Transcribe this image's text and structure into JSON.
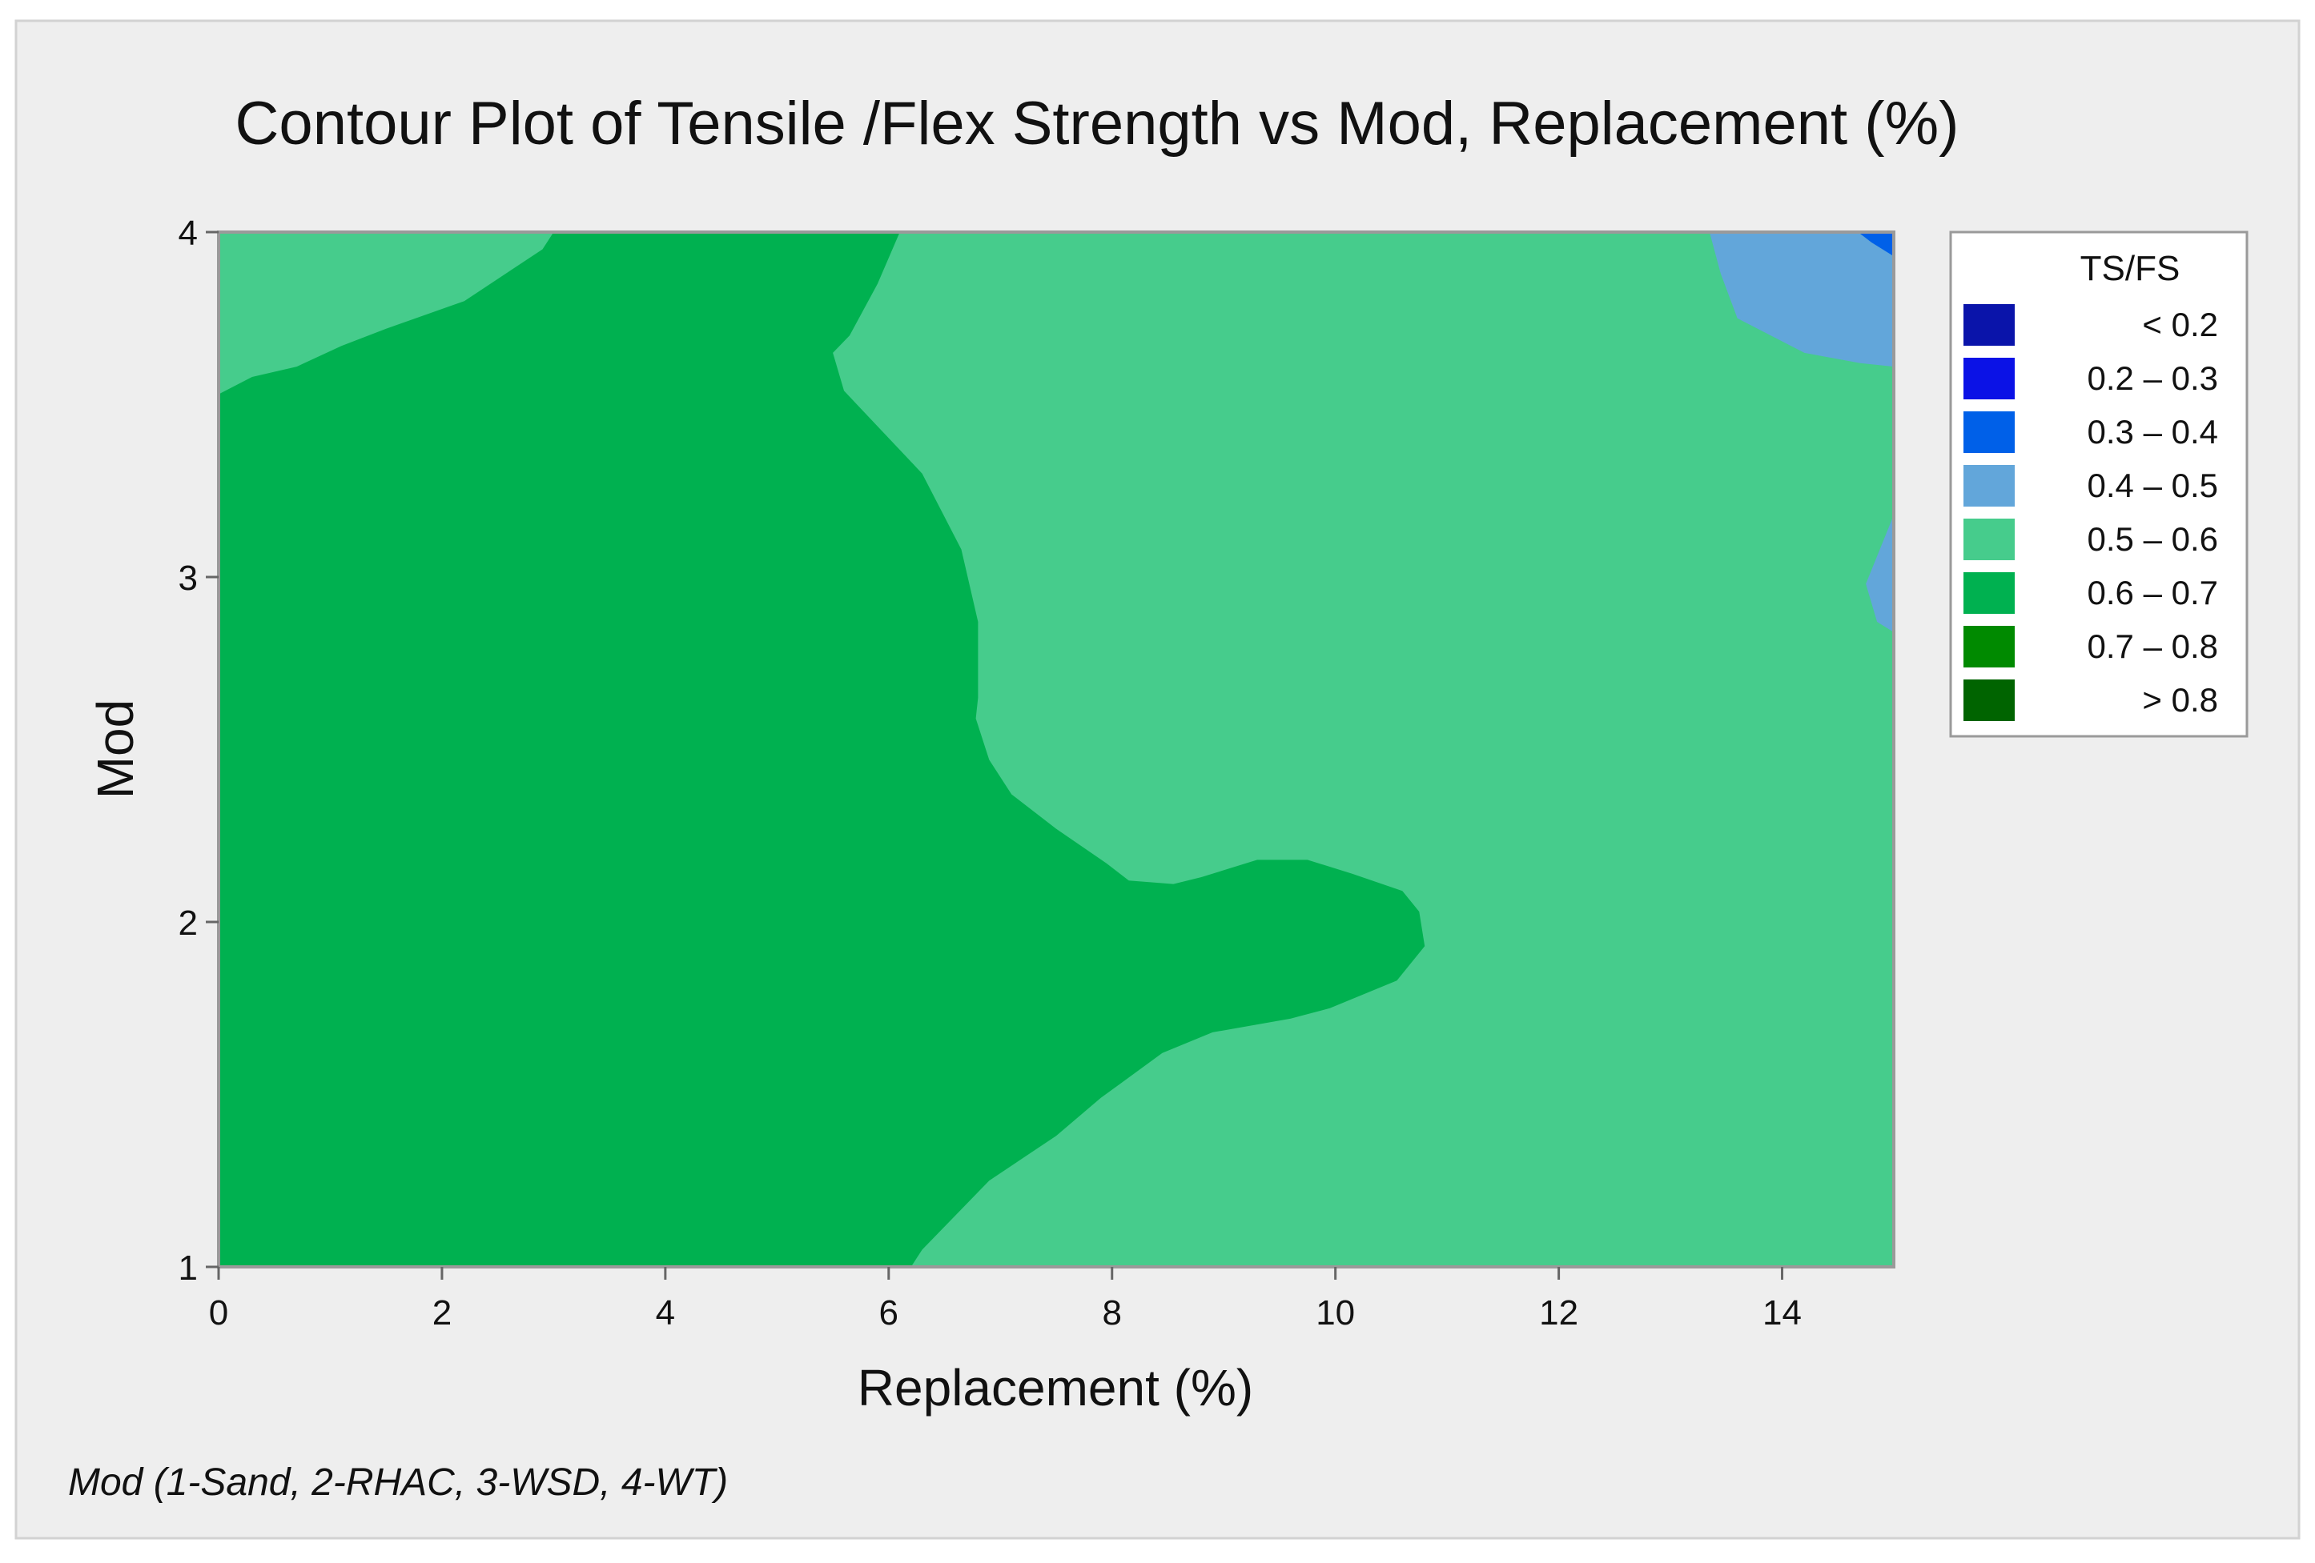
{
  "chart_data": {
    "type": "contour",
    "title": "Contour Plot of Tensile /Flex Strength vs Mod, Replacement (%)",
    "xlabel": "Replacement (%)",
    "ylabel": "Mod",
    "xlim": [
      0,
      15
    ],
    "ylim": [
      1,
      4
    ],
    "xticks": [
      0,
      2,
      4,
      6,
      8,
      10,
      12,
      14
    ],
    "yticks": [
      1,
      2,
      3,
      4
    ],
    "grid": false,
    "legend_position": "right",
    "legend": {
      "title": "TS/FS",
      "entries": [
        {
          "label": "< 0.2",
          "color": "#0a14aa"
        },
        {
          "label": "0.2 – 0.3",
          "color": "#0b12e6"
        },
        {
          "label": "0.3 – 0.4",
          "color": "#0060e8"
        },
        {
          "label": "0.4 – 0.5",
          "color": "#62a6da"
        },
        {
          "label": "0.5 – 0.6",
          "color": "#46cc8c"
        },
        {
          "label": "0.6 – 0.7",
          "color": "#00b150"
        },
        {
          "label": "0.7 – 0.8",
          "color": "#008a00"
        },
        {
          "label": "> 0.8",
          "color": "#006400"
        }
      ]
    },
    "regions": [
      {
        "level": "0.5 – 0.6",
        "color": "#46cc8c",
        "polygon": [
          [
            0,
            1
          ],
          [
            15,
            1
          ],
          [
            15,
            4
          ],
          [
            0,
            4
          ]
        ]
      },
      {
        "level": "0.6 – 0.7",
        "color": "#00b150",
        "polygon": [
          [
            0,
            1
          ],
          [
            0,
            3.53
          ],
          [
            0.3,
            3.58
          ],
          [
            0.7,
            3.61
          ],
          [
            1.1,
            3.67
          ],
          [
            1.5,
            3.72
          ],
          [
            2.2,
            3.8
          ],
          [
            2.9,
            3.95
          ],
          [
            3.0,
            4
          ],
          [
            6.1,
            4
          ],
          [
            5.9,
            3.85
          ],
          [
            5.65,
            3.7
          ],
          [
            5.5,
            3.65
          ],
          [
            5.6,
            3.54
          ],
          [
            6.3,
            3.3
          ],
          [
            6.65,
            3.08
          ],
          [
            6.8,
            2.87
          ],
          [
            6.8,
            2.65
          ],
          [
            6.78,
            2.59
          ],
          [
            6.9,
            2.47
          ],
          [
            7.1,
            2.37
          ],
          [
            7.5,
            2.27
          ],
          [
            7.95,
            2.17
          ],
          [
            8.15,
            2.12
          ],
          [
            8.55,
            2.11
          ],
          [
            8.8,
            2.13
          ],
          [
            9.3,
            2.18
          ],
          [
            9.75,
            2.18
          ],
          [
            10.15,
            2.14
          ],
          [
            10.6,
            2.09
          ],
          [
            10.75,
            2.03
          ],
          [
            10.8,
            1.93
          ],
          [
            10.55,
            1.83
          ],
          [
            9.95,
            1.75
          ],
          [
            9.6,
            1.72
          ],
          [
            8.9,
            1.68
          ],
          [
            8.45,
            1.62
          ],
          [
            7.9,
            1.49
          ],
          [
            7.5,
            1.38
          ],
          [
            6.9,
            1.25
          ],
          [
            6.3,
            1.05
          ],
          [
            6.2,
            1.0
          ]
        ]
      },
      {
        "level": "0.4 – 0.5",
        "color": "#62a6da",
        "polygon": [
          [
            13.35,
            4
          ],
          [
            15,
            4
          ],
          [
            15,
            3.61
          ],
          [
            14.7,
            3.62
          ],
          [
            14.2,
            3.65
          ],
          [
            13.6,
            3.75
          ],
          [
            13.45,
            3.88
          ]
        ]
      },
      {
        "level": "0.4 – 0.5",
        "color": "#62a6da",
        "polygon": [
          [
            15,
            3.18
          ],
          [
            14.75,
            2.98
          ],
          [
            14.85,
            2.87
          ],
          [
            15,
            2.84
          ]
        ]
      },
      {
        "level": "0.3 – 0.4",
        "color": "#0060e8",
        "polygon": [
          [
            14.68,
            4
          ],
          [
            15,
            4
          ],
          [
            15,
            3.93
          ],
          [
            14.8,
            3.97
          ]
        ]
      }
    ],
    "footnote": "Mod (1-Sand, 2-RHAC, 3-WSD, 4-WT)"
  }
}
